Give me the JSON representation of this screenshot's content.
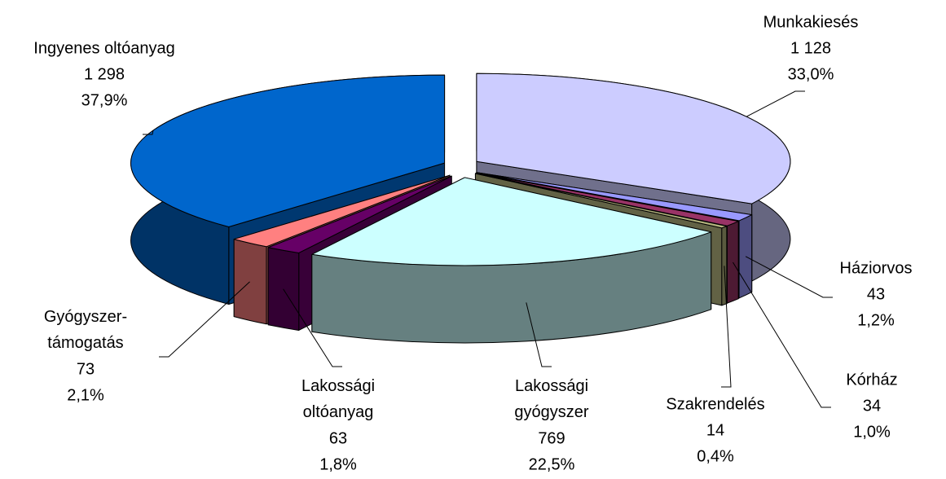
{
  "chart_data": {
    "type": "pie3d",
    "categories": [
      "Munkakiesés",
      "Háziorvos",
      "Kórház",
      "Szakrendelés",
      "Lakossági gyógyszer",
      "Lakossági oltóanyag",
      "Gyógyszer-támogatás",
      "Ingyenes oltóanyag"
    ],
    "values": [
      1128,
      43,
      34,
      14,
      769,
      63,
      73,
      1298
    ],
    "value_labels": [
      "1 128",
      "43",
      "34",
      "14",
      "769",
      "63",
      "73",
      "1 298"
    ],
    "percentages": [
      33.0,
      1.2,
      1.0,
      0.4,
      22.5,
      1.8,
      2.1,
      37.9
    ],
    "percentage_labels": [
      "33,0%",
      "1,2%",
      "1,0%",
      "0,4%",
      "22,5%",
      "1,8%",
      "2,1%",
      "37,9%"
    ],
    "colors": [
      "#ccccff",
      "#9999ff",
      "#993366",
      "#b3b37d",
      "#ccffff",
      "#660066",
      "#ff8080",
      "#0066cc"
    ]
  }
}
